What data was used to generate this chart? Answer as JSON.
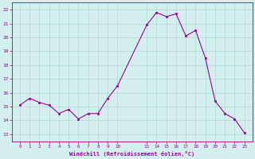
{
  "hours": [
    0,
    1,
    2,
    3,
    4,
    5,
    6,
    7,
    8,
    9,
    10,
    13,
    14,
    15,
    16,
    17,
    18,
    19,
    20,
    21,
    22,
    23
  ],
  "y": [
    15.1,
    15.6,
    15.3,
    15.1,
    14.5,
    14.8,
    14.1,
    14.5,
    14.5,
    15.6,
    16.5,
    20.9,
    21.8,
    21.5,
    21.7,
    20.1,
    20.5,
    18.5,
    15.4,
    14.5,
    14.1,
    13.1
  ],
  "yticks": [
    13,
    14,
    15,
    16,
    17,
    18,
    19,
    20,
    21,
    22
  ],
  "ylim": [
    12.5,
    22.5
  ],
  "line_color": "#990099",
  "marker_color": "#990099",
  "bg_color": "#d4f0ee",
  "grid_color": "#b0d8d8",
  "xlabel": "Windchill (Refroidissement éolien,°C)",
  "xlabel_color": "#990099",
  "tick_color": "#990099",
  "figsize": [
    3.2,
    2.0
  ],
  "dpi": 100
}
